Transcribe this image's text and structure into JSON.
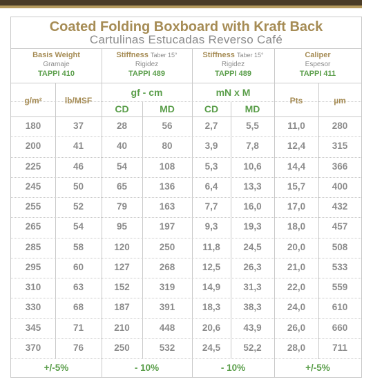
{
  "title": "Coated Folding Boxboard with Kraft Back",
  "subtitle": "Cartulinas Estucadas Reverso Café",
  "groups": {
    "basis": {
      "title": "Basis Weight",
      "sub": "Gramaje",
      "std": "TAPPI 410"
    },
    "stiff1": {
      "title": "Stiffness",
      "note": "Taber 15°",
      "sub": "Rigidez",
      "std": "TAPPI 489"
    },
    "stiff2": {
      "title": "Stiffness",
      "note": "Taber 15°",
      "sub": "Rigidez",
      "std": "TAPPI 489"
    },
    "caliper": {
      "title": "Caliper",
      "sub": "Espesor",
      "std": "TAPPI 411"
    }
  },
  "units": {
    "gm2": "g/m²",
    "lbmsf": "lb/MSF",
    "gfcm": "gf - cm",
    "mnxm": "mN x M",
    "pts": "Pts",
    "um": "µm",
    "cd1": "CD",
    "md1": "MD",
    "cd2": "CD",
    "md2": "MD"
  },
  "rows": [
    [
      "180",
      "37",
      "28",
      "56",
      "2,7",
      "5,5",
      "11,0",
      "280"
    ],
    [
      "200",
      "41",
      "40",
      "80",
      "3,9",
      "7,8",
      "12,4",
      "315"
    ],
    [
      "225",
      "46",
      "54",
      "108",
      "5,3",
      "10,6",
      "14,4",
      "366"
    ],
    [
      "245",
      "50",
      "65",
      "136",
      "6,4",
      "13,3",
      "15,7",
      "400"
    ],
    [
      "255",
      "52",
      "79",
      "163",
      "7,7",
      "16,0",
      "17,0",
      "432"
    ],
    [
      "265",
      "54",
      "95",
      "197",
      "9,3",
      "19,3",
      "18,0",
      "457"
    ],
    [
      "285",
      "58",
      "120",
      "250",
      "11,8",
      "24,5",
      "20,0",
      "508"
    ],
    [
      "295",
      "60",
      "127",
      "268",
      "12,5",
      "26,3",
      "21,0",
      "533"
    ],
    [
      "310",
      "63",
      "152",
      "319",
      "14,9",
      "31,3",
      "22,0",
      "559"
    ],
    [
      "330",
      "68",
      "187",
      "391",
      "18,3",
      "38,3",
      "24,0",
      "610"
    ],
    [
      "345",
      "71",
      "210",
      "448",
      "20,6",
      "43,9",
      "26,0",
      "660"
    ],
    [
      "370",
      "76",
      "250",
      "532",
      "24,5",
      "52,2",
      "28,0",
      "711"
    ]
  ],
  "tolerances": [
    "+/-5%",
    "- 10%",
    "- 10%",
    "+/-5%"
  ]
}
